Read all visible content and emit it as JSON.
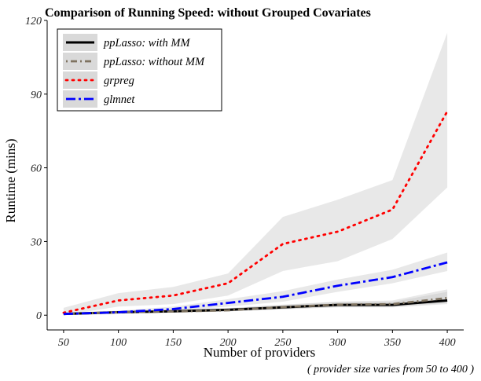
{
  "chart_data": {
    "type": "line",
    "title": "Comparison of Running Speed: without Grouped Covariates",
    "xlabel": "Number of providers",
    "ylabel": "Runtime (mins)",
    "caption": "( provider size varies from 50 to 400 )",
    "xlim": [
      35,
      415
    ],
    "ylim": [
      -6,
      120
    ],
    "x_ticks": [
      50,
      100,
      150,
      200,
      250,
      300,
      350,
      400
    ],
    "y_ticks": [
      0,
      30,
      60,
      90,
      120
    ],
    "grid": false,
    "legend_position": "top-left",
    "x": [
      50,
      100,
      150,
      200,
      250,
      300,
      350,
      400
    ],
    "series": [
      {
        "name": "ppLasso: with MM",
        "color": "#000000",
        "dash": "solid",
        "values": [
          0.5,
          1.2,
          1.6,
          2.2,
          3.2,
          4.2,
          4.2,
          6
        ],
        "band_lower": [
          0.2,
          0.8,
          1.1,
          1.6,
          2.4,
          3.2,
          3.2,
          4.5
        ],
        "band_upper": [
          1.0,
          1.7,
          2.2,
          2.9,
          4.2,
          5.4,
          5.4,
          9.5
        ]
      },
      {
        "name": "ppLasso: without MM",
        "color": "#7f7360",
        "dash": "dashdot",
        "values": [
          0.5,
          1.2,
          1.5,
          2,
          3.3,
          4.3,
          4.5,
          7
        ],
        "band_lower": [
          0.2,
          0.8,
          1.0,
          1.5,
          2.5,
          3.3,
          3.4,
          5.0
        ],
        "band_upper": [
          1.0,
          1.7,
          2.1,
          2.7,
          4.3,
          5.5,
          6.0,
          10.5
        ]
      },
      {
        "name": "grpreg",
        "color": "#ff0000",
        "dash": "dotted",
        "values": [
          1,
          6,
          8,
          13,
          29,
          34,
          43,
          83
        ],
        "band_lower": [
          0,
          3.5,
          4.5,
          8,
          18,
          22,
          31,
          52
        ],
        "band_upper": [
          3,
          9,
          11.5,
          17,
          40,
          47,
          55,
          115
        ]
      },
      {
        "name": "glmnet",
        "color": "#0000ff",
        "dash": "longdash",
        "values": [
          0.5,
          1.2,
          2.5,
          5,
          7.5,
          12,
          15.5,
          21.5
        ],
        "band_lower": [
          0.2,
          0.8,
          1.8,
          3.5,
          5.5,
          9.5,
          13,
          18
        ],
        "band_upper": [
          1.0,
          1.8,
          3.5,
          6.5,
          9.8,
          14.5,
          18.5,
          25.5
        ]
      }
    ]
  }
}
